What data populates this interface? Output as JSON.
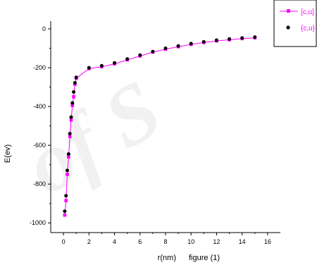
{
  "chart_data": {
    "type": "line",
    "title": "",
    "xlabel": "r(nm)",
    "caption": "figure (1)",
    "ylabel": "E(ev)",
    "xlim": [
      -1,
      17
    ],
    "ylim": [
      -1050,
      40
    ],
    "x_ticks": [
      "0",
      "2",
      "4",
      "6",
      "8",
      "10",
      "12",
      "14",
      "16"
    ],
    "y_ticks": [
      "0",
      "-200",
      "-400",
      "-600",
      "-800",
      "-1000"
    ],
    "legend_position": "top-right",
    "colors": {
      "series_a": "#ff00ff",
      "series_b": "#000000",
      "axes": "#000000"
    },
    "series": [
      {
        "name": "[c,u]",
        "style": "line-square",
        "x": [
          0.1,
          0.2,
          0.3,
          0.4,
          0.5,
          0.6,
          0.7,
          0.8,
          0.9,
          1,
          2,
          3,
          4,
          5,
          6,
          7,
          8,
          9,
          10,
          11,
          12,
          13,
          14,
          15
        ],
        "y": [
          -960,
          -885,
          -750,
          -660,
          -555,
          -470,
          -395,
          -350,
          -285,
          -255,
          -205,
          -195,
          -180,
          -160,
          -140,
          -120,
          -105,
          -92,
          -80,
          -70,
          -62,
          -56,
          -50,
          -46
        ]
      },
      {
        "name": "{c,u}",
        "style": "dot",
        "x": [
          0.1,
          0.2,
          0.3,
          0.4,
          0.5,
          0.6,
          0.7,
          0.8,
          0.9,
          1,
          2,
          3,
          4,
          5,
          6,
          7,
          8,
          9,
          10,
          11,
          12,
          13,
          14,
          15
        ],
        "y": [
          -940,
          -860,
          -730,
          -645,
          -540,
          -455,
          -382,
          -325,
          -278,
          -250,
          -200,
          -190,
          -175,
          -155,
          -135,
          -117,
          -100,
          -88,
          -76,
          -67,
          -58,
          -52,
          -47,
          -42
        ]
      }
    ]
  }
}
